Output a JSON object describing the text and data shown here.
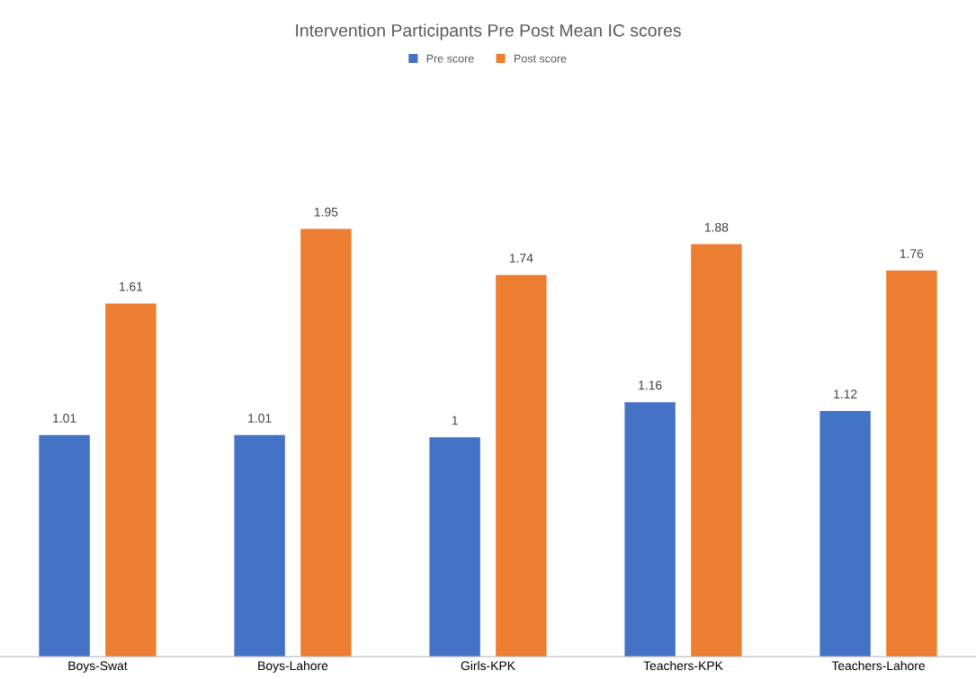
{
  "chart_data": {
    "type": "bar",
    "title": "Intervention Participants Pre Post Mean IC scores",
    "categories": [
      "Boys-Swat",
      "Boys-Lahore",
      "Girls-KPK",
      "Teachers-KPK",
      "Teachers-Lahore"
    ],
    "series": [
      {
        "name": "Pre score",
        "color": "#4472c4",
        "values": [
          1.01,
          1.01,
          1,
          1.16,
          1.12
        ]
      },
      {
        "name": "Post score",
        "color": "#ed7d31",
        "values": [
          1.61,
          1.95,
          1.74,
          1.88,
          1.76
        ]
      }
    ],
    "data_labels": true,
    "legend": "top",
    "grid": false,
    "tick_labels": "x"
  }
}
